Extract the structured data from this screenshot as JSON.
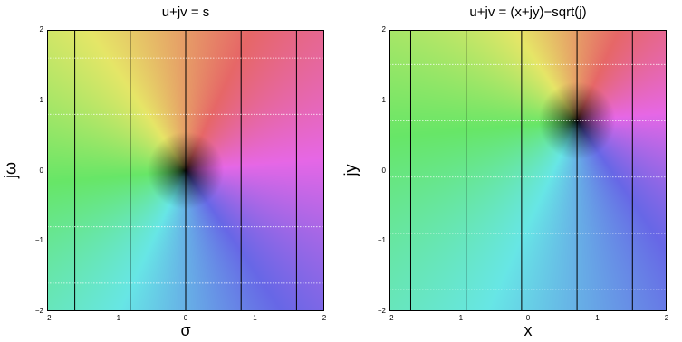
{
  "chart_data": [
    {
      "type": "heatmap",
      "title": "u+jv = s",
      "xlabel": "σ",
      "ylabel": "jω",
      "xlim": [
        -2,
        2
      ],
      "ylim": [
        -2,
        2
      ],
      "xticks": [
        "−2",
        "−1",
        "0",
        "1",
        "2"
      ],
      "yticks": [
        "−2",
        "−1",
        "0",
        "1",
        "2"
      ],
      "function": "s",
      "zero_point": [
        0,
        0
      ],
      "color_mapping": "hue = phase of u+jv, brightness = magnitude |u+jv|",
      "contour_lines": {
        "vertical_black_lines_at_x": [
          -1.6,
          -0.8,
          0,
          0.8,
          1.6
        ],
        "horizontal_dotted_white_lines_at_y": [
          1.6,
          0.8,
          -0.8,
          -1.6
        ]
      }
    },
    {
      "type": "heatmap",
      "title": "u+jv = (x+jy)−sqrt(j)",
      "xlabel": "x",
      "ylabel": "jy",
      "xlim": [
        -2,
        2
      ],
      "ylim": [
        -2,
        2
      ],
      "xticks": [
        "−2",
        "−1",
        "0",
        "1",
        "2"
      ],
      "yticks": [
        "−2",
        "−1",
        "0",
        "1",
        "2"
      ],
      "function": "(x+jy)-sqrt(j)",
      "zero_point": [
        0.707,
        0.707
      ],
      "color_mapping": "hue = phase of u+jv, brightness = magnitude |u+jv|",
      "contour_lines": {
        "vertical_black_lines_at_x": [
          -1.693,
          -0.893,
          -0.093,
          0.707,
          1.507
        ],
        "horizontal_dotted_white_lines_at_y": [
          1.507,
          0.707,
          -0.093,
          -0.893,
          -1.693
        ]
      }
    }
  ]
}
